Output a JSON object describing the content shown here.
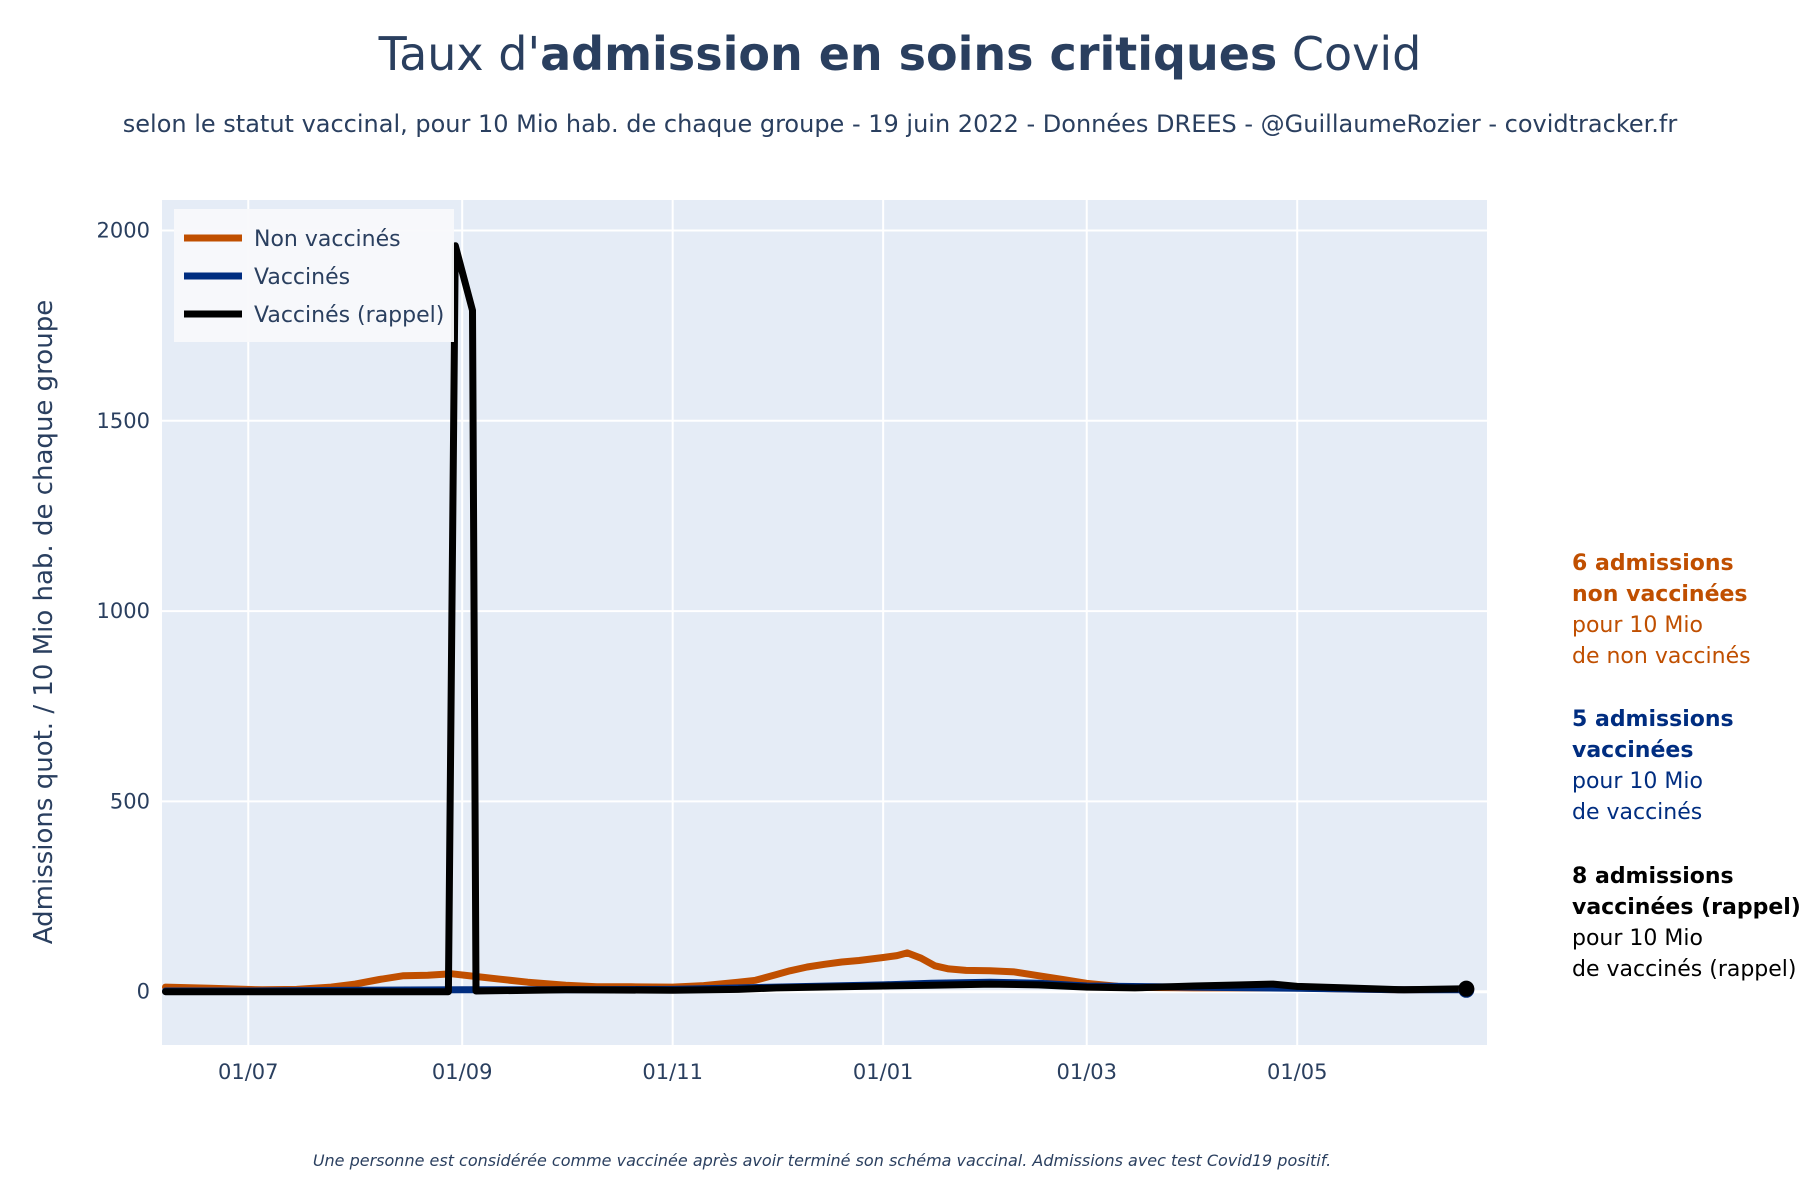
{
  "chart_data": {
    "type": "line",
    "title": {
      "prefix": "Taux d'",
      "bold": "admission en soins critiques",
      "suffix": " Covid"
    },
    "subtitle": "selon le statut vaccinal, pour 10 Mio hab. de chaque groupe - 19 juin 2022 - Données DREES - @GuillaumeRozier - covidtracker.fr",
    "ylabel": "Admissions quot. / 10 Mio hab. de chaque groupe",
    "xlabel": "",
    "x_ticks": [
      {
        "date": "2021-07-01",
        "label": "01/07"
      },
      {
        "date": "2021-09-01",
        "label": "01/09"
      },
      {
        "date": "2021-11-01",
        "label": "01/11"
      },
      {
        "date": "2022-01-01",
        "label": "01/01"
      },
      {
        "date": "2022-03-01",
        "label": "01/03"
      },
      {
        "date": "2022-05-01",
        "label": "01/05"
      }
    ],
    "xlim": [
      "2021-06-06",
      "2022-06-25"
    ],
    "y_ticks": [
      0,
      500,
      1000,
      1500,
      2000
    ],
    "ylim": [
      -140,
      2080
    ],
    "grid": true,
    "legend_position": "top-left",
    "series": [
      {
        "name": "Non vaccinés",
        "color": "#c04f00",
        "points": [
          [
            "2021-06-07",
            12
          ],
          [
            "2021-06-20",
            9
          ],
          [
            "2021-07-05",
            5
          ],
          [
            "2021-07-15",
            6
          ],
          [
            "2021-07-25",
            12
          ],
          [
            "2021-08-01",
            20
          ],
          [
            "2021-08-08",
            32
          ],
          [
            "2021-08-15",
            42
          ],
          [
            "2021-08-22",
            43
          ],
          [
            "2021-08-29",
            47
          ],
          [
            "2021-09-05",
            40
          ],
          [
            "2021-09-12",
            33
          ],
          [
            "2021-09-20",
            25
          ],
          [
            "2021-10-01",
            17
          ],
          [
            "2021-10-10",
            13
          ],
          [
            "2021-10-20",
            13
          ],
          [
            "2021-11-01",
            12
          ],
          [
            "2021-11-10",
            16
          ],
          [
            "2021-11-20",
            25
          ],
          [
            "2021-11-25",
            30
          ],
          [
            "2021-12-01",
            45
          ],
          [
            "2021-12-05",
            55
          ],
          [
            "2021-12-10",
            65
          ],
          [
            "2021-12-15",
            72
          ],
          [
            "2021-12-20",
            78
          ],
          [
            "2021-12-25",
            82
          ],
          [
            "2022-01-01",
            90
          ],
          [
            "2022-01-05",
            95
          ],
          [
            "2022-01-08",
            102
          ],
          [
            "2022-01-12",
            88
          ],
          [
            "2022-01-16",
            68
          ],
          [
            "2022-01-20",
            60
          ],
          [
            "2022-01-25",
            56
          ],
          [
            "2022-02-01",
            55
          ],
          [
            "2022-02-08",
            52
          ],
          [
            "2022-02-15",
            42
          ],
          [
            "2022-02-22",
            32
          ],
          [
            "2022-03-01",
            22
          ],
          [
            "2022-03-10",
            14
          ],
          [
            "2022-03-20",
            11
          ],
          [
            "2022-04-01",
            10
          ],
          [
            "2022-04-15",
            10
          ],
          [
            "2022-05-01",
            10
          ],
          [
            "2022-05-15",
            7
          ],
          [
            "2022-06-01",
            5
          ],
          [
            "2022-06-19",
            6
          ]
        ]
      },
      {
        "name": "Vaccinés",
        "color": "#002d80",
        "points": [
          [
            "2021-06-07",
            2
          ],
          [
            "2021-07-01",
            2
          ],
          [
            "2021-08-01",
            4
          ],
          [
            "2021-09-01",
            5
          ],
          [
            "2021-10-01",
            5
          ],
          [
            "2021-11-01",
            6
          ],
          [
            "2021-12-01",
            12
          ],
          [
            "2022-01-01",
            18
          ],
          [
            "2022-01-15",
            22
          ],
          [
            "2022-02-01",
            25
          ],
          [
            "2022-02-15",
            22
          ],
          [
            "2022-03-01",
            15
          ],
          [
            "2022-04-01",
            12
          ],
          [
            "2022-05-01",
            9
          ],
          [
            "2022-06-01",
            5
          ],
          [
            "2022-06-19",
            5
          ]
        ]
      },
      {
        "name": "Vaccinés (rappel)",
        "color": "#000000",
        "points": [
          [
            "2021-06-07",
            0
          ],
          [
            "2021-08-28",
            0
          ],
          [
            "2021-08-30",
            1960
          ],
          [
            "2021-09-04",
            1790
          ],
          [
            "2021-09-05",
            2
          ],
          [
            "2021-10-01",
            5
          ],
          [
            "2021-11-01",
            4
          ],
          [
            "2021-11-20",
            6
          ],
          [
            "2021-12-01",
            10
          ],
          [
            "2022-01-01",
            15
          ],
          [
            "2022-01-15",
            17
          ],
          [
            "2022-02-01",
            20
          ],
          [
            "2022-02-15",
            18
          ],
          [
            "2022-03-01",
            12
          ],
          [
            "2022-03-15",
            10
          ],
          [
            "2022-04-01",
            15
          ],
          [
            "2022-04-15",
            18
          ],
          [
            "2022-04-24",
            20
          ],
          [
            "2022-05-01",
            14
          ],
          [
            "2022-05-15",
            10
          ],
          [
            "2022-06-01",
            5
          ],
          [
            "2022-06-19",
            8
          ]
        ]
      }
    ],
    "annotations": [
      {
        "color": "#c04f00",
        "bold_lines": [
          "6 admissions",
          "non vaccinées"
        ],
        "lines": [
          "pour 10 Mio",
          "de non vaccinés"
        ]
      },
      {
        "color": "#002d80",
        "bold_lines": [
          "5 admissions",
          "vaccinées"
        ],
        "lines": [
          "pour 10 Mio",
          "de vaccinés"
        ]
      },
      {
        "color": "#000000",
        "bold_lines": [
          "8 admissions",
          "vaccinées (rappel)"
        ],
        "lines": [
          "pour 10 Mio",
          "de vaccinés (rappel)"
        ]
      }
    ],
    "footnote": "Une personne est considérée comme vaccinée après avoir terminé son schéma vaccinal. Admissions avec test Covid19 positif."
  }
}
